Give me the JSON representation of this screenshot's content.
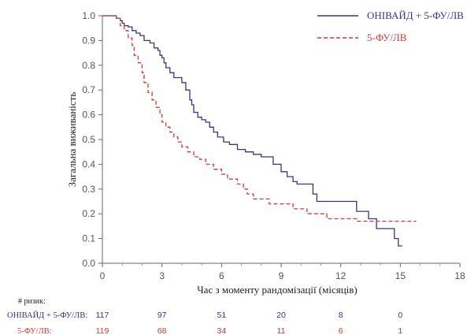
{
  "chart_data": {
    "type": "line",
    "xlabel": "Час з моменту рандомізації (місяців)",
    "ylabel": "Загальна виживаність",
    "xlim": [
      0,
      18
    ],
    "ylim": [
      0,
      1.0
    ],
    "xticks": [
      0,
      3,
      6,
      9,
      12,
      15,
      18
    ],
    "yticks": [
      0,
      0.1,
      0.2,
      0.3,
      0.4,
      0.5,
      0.6,
      0.7,
      0.8,
      0.9,
      1.0
    ],
    "grid": false,
    "legend_position": "top-right",
    "series": [
      {
        "name": "ОНІВАЙД + 5-ФУ/ЛВ",
        "color": "#3a3480",
        "dash": "solid",
        "points": [
          [
            0,
            1.0
          ],
          [
            0.6,
            1.0
          ],
          [
            0.7,
            0.99
          ],
          [
            0.9,
            0.98
          ],
          [
            1.0,
            0.97
          ],
          [
            1.1,
            0.96
          ],
          [
            1.3,
            0.955
          ],
          [
            1.5,
            0.94
          ],
          [
            1.7,
            0.93
          ],
          [
            1.9,
            0.92
          ],
          [
            2.1,
            0.9
          ],
          [
            2.4,
            0.89
          ],
          [
            2.6,
            0.87
          ],
          [
            2.8,
            0.86
          ],
          [
            2.9,
            0.84
          ],
          [
            3.0,
            0.83
          ],
          [
            3.1,
            0.81
          ],
          [
            3.2,
            0.79
          ],
          [
            3.4,
            0.77
          ],
          [
            3.6,
            0.75
          ],
          [
            4.0,
            0.73
          ],
          [
            4.2,
            0.7
          ],
          [
            4.4,
            0.66
          ],
          [
            4.5,
            0.64
          ],
          [
            4.6,
            0.61
          ],
          [
            4.8,
            0.59
          ],
          [
            5.0,
            0.58
          ],
          [
            5.2,
            0.57
          ],
          [
            5.4,
            0.55
          ],
          [
            5.6,
            0.53
          ],
          [
            5.8,
            0.51
          ],
          [
            6.1,
            0.49
          ],
          [
            6.4,
            0.48
          ],
          [
            6.8,
            0.46
          ],
          [
            7.2,
            0.45
          ],
          [
            7.6,
            0.44
          ],
          [
            8.0,
            0.43
          ],
          [
            8.6,
            0.4
          ],
          [
            9.0,
            0.37
          ],
          [
            9.3,
            0.35
          ],
          [
            9.6,
            0.33
          ],
          [
            9.8,
            0.32
          ],
          [
            10.6,
            0.28
          ],
          [
            10.8,
            0.25
          ],
          [
            12.8,
            0.21
          ],
          [
            13.4,
            0.18
          ],
          [
            13.8,
            0.14
          ],
          [
            14.7,
            0.1
          ],
          [
            14.9,
            0.07
          ],
          [
            15.1,
            0.07
          ]
        ]
      },
      {
        "name": "5-ФУ/ЛВ",
        "color": "#d0393a",
        "dash": "dashed",
        "points": [
          [
            0,
            1.0
          ],
          [
            0.7,
            0.99
          ],
          [
            0.9,
            0.96
          ],
          [
            1.1,
            0.94
          ],
          [
            1.3,
            0.91
          ],
          [
            1.5,
            0.88
          ],
          [
            1.6,
            0.84
          ],
          [
            1.8,
            0.81
          ],
          [
            2.0,
            0.77
          ],
          [
            2.1,
            0.73
          ],
          [
            2.3,
            0.69
          ],
          [
            2.5,
            0.66
          ],
          [
            2.7,
            0.63
          ],
          [
            2.9,
            0.6
          ],
          [
            3.0,
            0.57
          ],
          [
            3.2,
            0.55
          ],
          [
            3.4,
            0.53
          ],
          [
            3.6,
            0.51
          ],
          [
            3.8,
            0.49
          ],
          [
            4.0,
            0.47
          ],
          [
            4.3,
            0.45
          ],
          [
            4.6,
            0.43
          ],
          [
            4.9,
            0.42
          ],
          [
            5.2,
            0.4
          ],
          [
            5.6,
            0.38
          ],
          [
            6.0,
            0.36
          ],
          [
            6.3,
            0.34
          ],
          [
            6.8,
            0.32
          ],
          [
            7.1,
            0.3
          ],
          [
            7.3,
            0.28
          ],
          [
            7.6,
            0.26
          ],
          [
            8.4,
            0.24
          ],
          [
            9.6,
            0.22
          ],
          [
            10.3,
            0.2
          ],
          [
            11.3,
            0.18
          ],
          [
            12.8,
            0.17
          ],
          [
            15.8,
            0.17
          ]
        ]
      }
    ]
  },
  "risk_table": {
    "title": "# ризик:",
    "rows": [
      {
        "label": "ОНІВАЙД + 5-ФУ/ЛВ:",
        "color": "#3a3480",
        "values": [
          "117",
          "97",
          "51",
          "20",
          "8",
          "0"
        ]
      },
      {
        "label": "5-ФУ/ЛВ:",
        "color": "#d0393a",
        "values": [
          "119",
          "68",
          "34",
          "11",
          "6",
          "1"
        ]
      }
    ]
  }
}
